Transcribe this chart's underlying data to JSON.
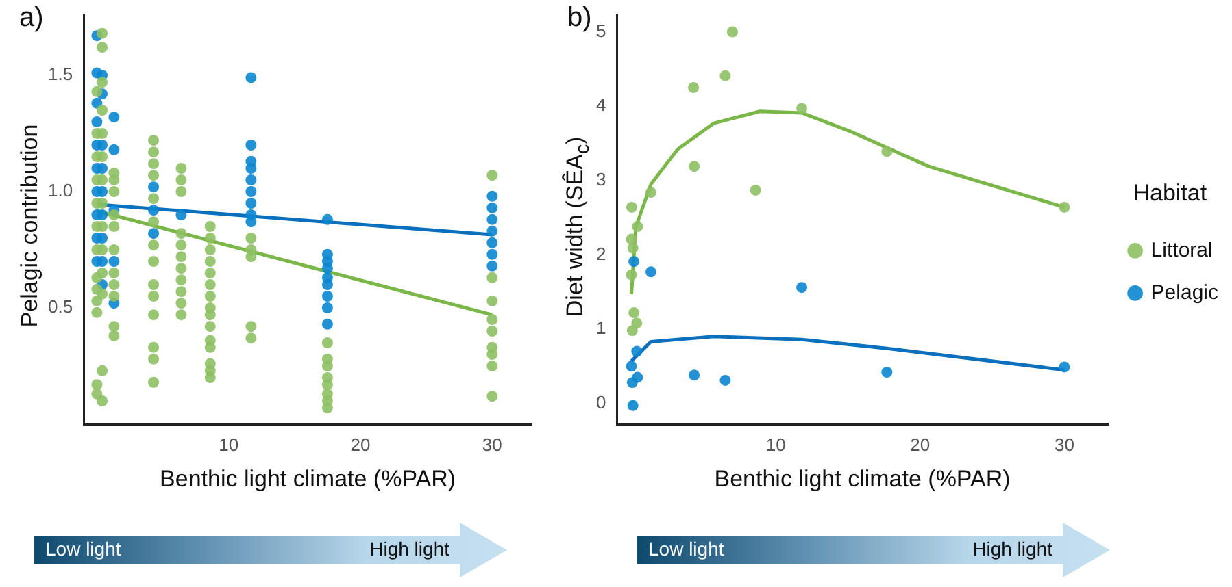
{
  "chart_data": [
    {
      "type": "scatter",
      "title": "a)",
      "xlabel": "Benthic light climate (%PAR)",
      "ylabel": "Pelagic contribution",
      "xlim": [
        -1,
        33
      ],
      "xticks": [
        10,
        20,
        30
      ],
      "ylim": [
        0,
        1.76
      ],
      "yticks": [
        {
          "value": 0.5,
          "label": "0.5"
        },
        {
          "value": 1,
          "label": "1.0"
        },
        {
          "value": 1.5,
          "label": "1.5"
        }
      ],
      "annotations": [
        "Low light",
        "High light"
      ],
      "series": [
        {
          "color": "#8dc063",
          "marker": "circle",
          "x": [
            0,
            0,
            0,
            0,
            0,
            0,
            0,
            0,
            0,
            0,
            0,
            0,
            0,
            0.4,
            0.4,
            0.4,
            0.4,
            0.4,
            0.4,
            0.4,
            0.4,
            0.4,
            0.4,
            0.4,
            0.4,
            0.4,
            0.4,
            1.3,
            1.3,
            1.3,
            1.3,
            1.3,
            1.3,
            1.3,
            1.3,
            1.3,
            1.3,
            1.3,
            4.3,
            4.3,
            4.3,
            4.3,
            4.3,
            4.3,
            4.3,
            4.3,
            4.3,
            4.3,
            4.3,
            4.3,
            4.3,
            4.3,
            6.4,
            6.4,
            6.4,
            6.4,
            6.4,
            6.4,
            6.4,
            6.4,
            6.4,
            6.4,
            6.4,
            8.6,
            8.6,
            8.6,
            8.6,
            8.6,
            8.6,
            8.6,
            8.6,
            8.6,
            8.6,
            8.6,
            8.6,
            8.6,
            8.6,
            8.6,
            11.7,
            11.7,
            11.7,
            11.7,
            11.7,
            17.5,
            17.5,
            17.5,
            17.5,
            17.5,
            17.5,
            17.5,
            17.5,
            30,
            30,
            30,
            30,
            30,
            30,
            30,
            30,
            30
          ],
          "values": [
            0.13,
            0.17,
            0.48,
            0.53,
            0.58,
            0.63,
            0.75,
            0.85,
            0.95,
            1.05,
            1.15,
            1.25,
            1.43,
            0.1,
            0.23,
            0.56,
            0.65,
            0.75,
            0.85,
            0.95,
            1.05,
            1.15,
            1.25,
            1.35,
            1.47,
            1.62,
            1.68,
            0.38,
            0.42,
            0.55,
            0.6,
            0.65,
            0.75,
            0.85,
            0.9,
            1.0,
            1.05,
            1.08,
            0.18,
            0.28,
            0.33,
            0.47,
            0.55,
            0.6,
            0.7,
            0.77,
            0.87,
            0.97,
            1.07,
            1.12,
            1.17,
            1.22,
            0.47,
            0.52,
            0.57,
            0.62,
            0.67,
            0.72,
            0.77,
            0.82,
            1.0,
            1.05,
            1.1,
            0.2,
            0.23,
            0.26,
            0.33,
            0.36,
            0.42,
            0.47,
            0.5,
            0.55,
            0.6,
            0.65,
            0.7,
            0.75,
            0.8,
            0.85,
            0.37,
            0.42,
            0.72,
            0.75,
            0.8,
            0.07,
            0.1,
            0.13,
            0.17,
            0.2,
            0.25,
            0.28,
            0.35,
            0.12,
            0.25,
            0.3,
            0.33,
            0.4,
            0.45,
            0.53,
            0.63,
            1.07
          ]
        },
        {
          "color": "#0a86cf",
          "marker": "circle",
          "x": [
            0,
            0,
            0,
            0,
            0,
            0,
            0,
            0,
            0,
            0,
            0.4,
            0.4,
            0.4,
            0.4,
            0.4,
            0.4,
            0.4,
            0.4,
            0.4,
            1.3,
            1.3,
            1.3,
            1.3,
            1.3,
            4.3,
            4.3,
            4.3,
            6.4,
            11.7,
            11.7,
            11.7,
            11.7,
            11.7,
            11.7,
            11.7,
            11.7,
            11.7,
            17.5,
            17.5,
            17.5,
            17.5,
            17.5,
            17.5,
            17.5,
            17.5,
            17.5,
            30,
            30,
            30,
            30,
            30,
            30,
            30
          ],
          "values": [
            0.7,
            0.8,
            0.9,
            1.0,
            1.1,
            1.2,
            1.3,
            1.38,
            1.51,
            1.67,
            0.6,
            0.7,
            0.8,
            0.9,
            1.0,
            1.1,
            1.2,
            1.42,
            1.5,
            0.52,
            0.7,
            0.92,
            1.18,
            1.32,
            0.82,
            0.92,
            1.02,
            0.9,
            0.87,
            0.9,
            0.95,
            1.0,
            1.05,
            1.1,
            1.13,
            1.2,
            1.49,
            0.43,
            0.5,
            0.55,
            0.6,
            0.63,
            0.67,
            0.7,
            0.73,
            0.88,
            0.68,
            0.73,
            0.78,
            0.83,
            0.88,
            0.93,
            0.98
          ]
        },
        {
          "type": "line",
          "marker": "none",
          "color": "#0a6fbd",
          "x": [
            0,
            30
          ],
          "values": [
            0.945,
            0.815
          ]
        },
        {
          "type": "line",
          "marker": "none",
          "color": "#7ab648",
          "x": [
            0,
            30
          ],
          "values": [
            0.917,
            0.47
          ]
        }
      ]
    },
    {
      "type": "scatter",
      "title": "b)",
      "xlabel": "Benthic light climate (%PAR)",
      "ylabel": "Diet width (SÊA$_{c}$)",
      "xlim": [
        -1,
        33
      ],
      "xticks": [
        10,
        20,
        30
      ],
      "ylim": [
        -0.28,
        5.23
      ],
      "yticks": [
        0,
        1,
        2,
        3,
        4,
        5
      ],
      "legend": "right",
      "legend_title": "Habitat",
      "annotations": [
        "Low light",
        "High light"
      ],
      "series": [
        {
          "name": "Littoral",
          "marker": "circle",
          "color": "#8dc063",
          "x": [
            0,
            0,
            0.02,
            0.1,
            0.06,
            0.17,
            0.37,
            0.42,
            1.35,
            4.3,
            4.35,
            6.5,
            7.0,
            8.6,
            11.8,
            17.7,
            30
          ],
          "values": [
            1.73,
            2.21,
            2.64,
            2.09,
            0.98,
            1.22,
            1.08,
            2.38,
            2.84,
            4.25,
            3.19,
            4.41,
            5.0,
            2.87,
            3.97,
            3.39,
            2.64
          ]
        },
        {
          "name": "Pelagic",
          "marker": "circle",
          "color": "#0a86cf",
          "x": [
            0,
            0.06,
            0.1,
            0.17,
            0.37,
            0.42,
            1.35,
            4.35,
            6.5,
            11.8,
            17.7,
            30
          ],
          "values": [
            0.5,
            0.28,
            -0.03,
            1.91,
            0.7,
            0.35,
            1.77,
            0.38,
            0.31,
            1.56,
            0.42,
            0.49
          ]
        },
        {
          "type": "line",
          "marker": "none",
          "color": "#7ab648",
          "x": [
            0,
            0.3,
            1.35,
            3.2,
            5.7,
            8.9,
            11.8,
            15.3,
            20.6,
            30
          ],
          "values": [
            1.47,
            2.37,
            2.95,
            3.42,
            3.77,
            3.93,
            3.91,
            3.65,
            3.19,
            2.64
          ]
        },
        {
          "type": "line",
          "marker": "none",
          "color": "#0a6fbd",
          "x": [
            0,
            1.35,
            5.7,
            11.8,
            17.7,
            30
          ],
          "values": [
            0.57,
            0.83,
            0.9,
            0.86,
            0.74,
            0.45
          ]
        }
      ]
    }
  ]
}
